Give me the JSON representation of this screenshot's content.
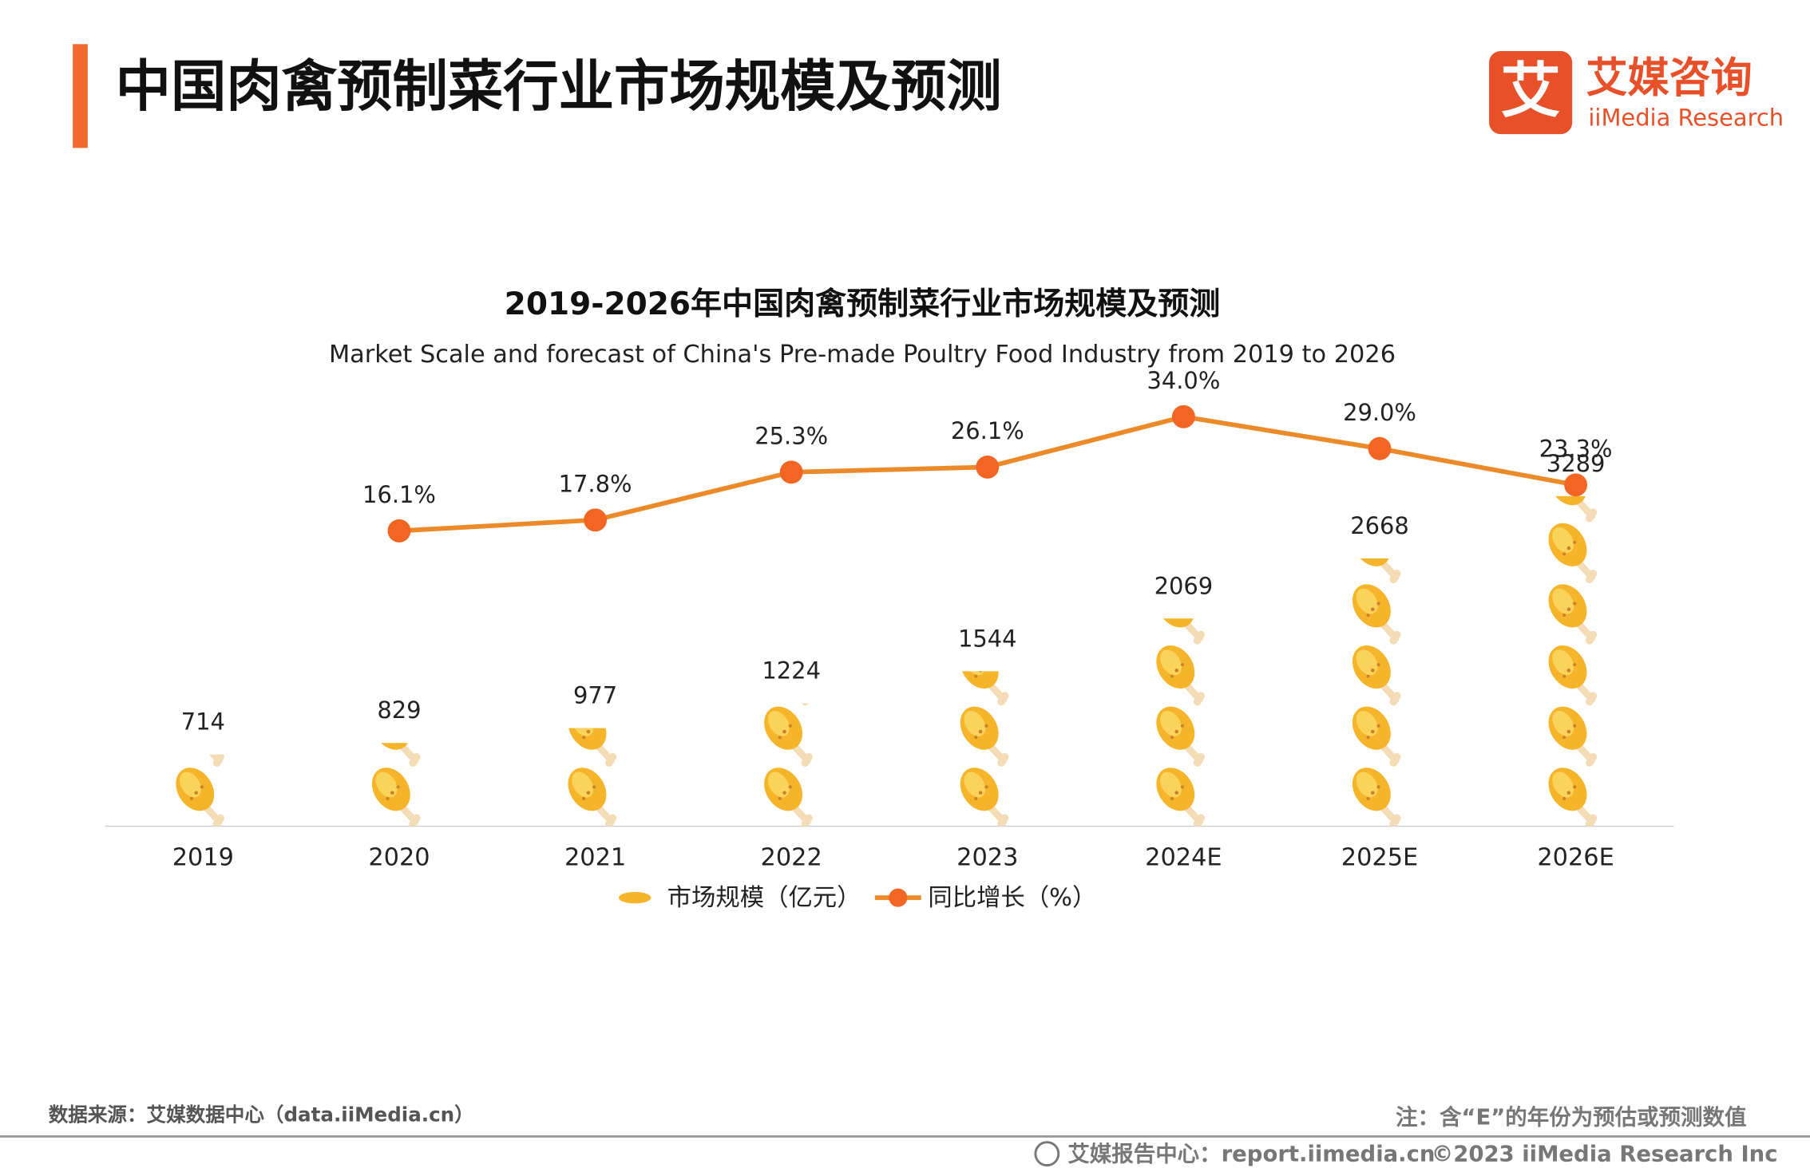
{
  "header": {
    "title": "中国肉禽预制菜行业市场规模及预测",
    "logo_mark": "艾",
    "logo_cn": "艾媒咨询",
    "logo_en": "iiMedia Research"
  },
  "chart_data": {
    "type": "bar",
    "title": "2019-2026年中国肉禽预制菜行业市场规模及预测",
    "subtitle": "Market Scale and forecast of China's Pre-made Poultry Food Industry from 2019 to 2026",
    "categories": [
      "2019",
      "2020",
      "2021",
      "2022",
      "2023",
      "2024E",
      "2025E",
      "2026E"
    ],
    "series": [
      {
        "name": "市场规模（亿元）",
        "color": "#f5b42a",
        "values": [
          714,
          829,
          977,
          1224,
          1544,
          2069,
          2668,
          3289
        ]
      },
      {
        "name": "同比增长（%）",
        "type": "line",
        "axis": "y2",
        "color": "#ec8a2a",
        "values": [
          null,
          16.1,
          17.8,
          25.3,
          26.1,
          34.0,
          29.0,
          23.3
        ],
        "value_labels": [
          null,
          "16.1%",
          "17.8%",
          "25.3%",
          "26.1%",
          "34.0%",
          "29.0%",
          "23.3%"
        ]
      }
    ],
    "legend": "bottom"
  },
  "footer": {
    "source": "数据来源：艾媒数据中心（data.iiMedia.cn）",
    "note": "注：含“E”的年份为预估或预测数值",
    "report": "艾媒报告中心：report.iimedia.cn",
    "copyright": "©2023  iiMedia Research  Inc"
  }
}
